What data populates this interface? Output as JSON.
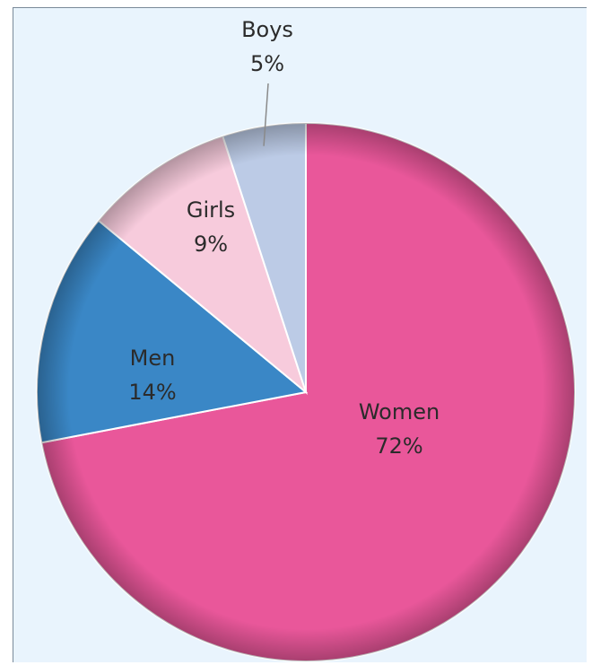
{
  "chart_data": {
    "type": "pie",
    "title": "",
    "start_angle": "12 o'clock, clockwise",
    "slices": [
      {
        "label": "Women",
        "value": 72,
        "value_label": "72%",
        "color": "#e9579a"
      },
      {
        "label": "Men",
        "value": 14,
        "value_label": "14%",
        "color": "#3a87c6"
      },
      {
        "label": "Girls",
        "value": 9,
        "value_label": "9%",
        "color": "#f7cbdc"
      },
      {
        "label": "Boys",
        "value": 5,
        "value_label": "5%",
        "color": "#bccbe6"
      }
    ],
    "background_color": "#e9f4fd",
    "slice_border_color": "#ffffff",
    "edge_shade_color": "#9a2a5c"
  }
}
